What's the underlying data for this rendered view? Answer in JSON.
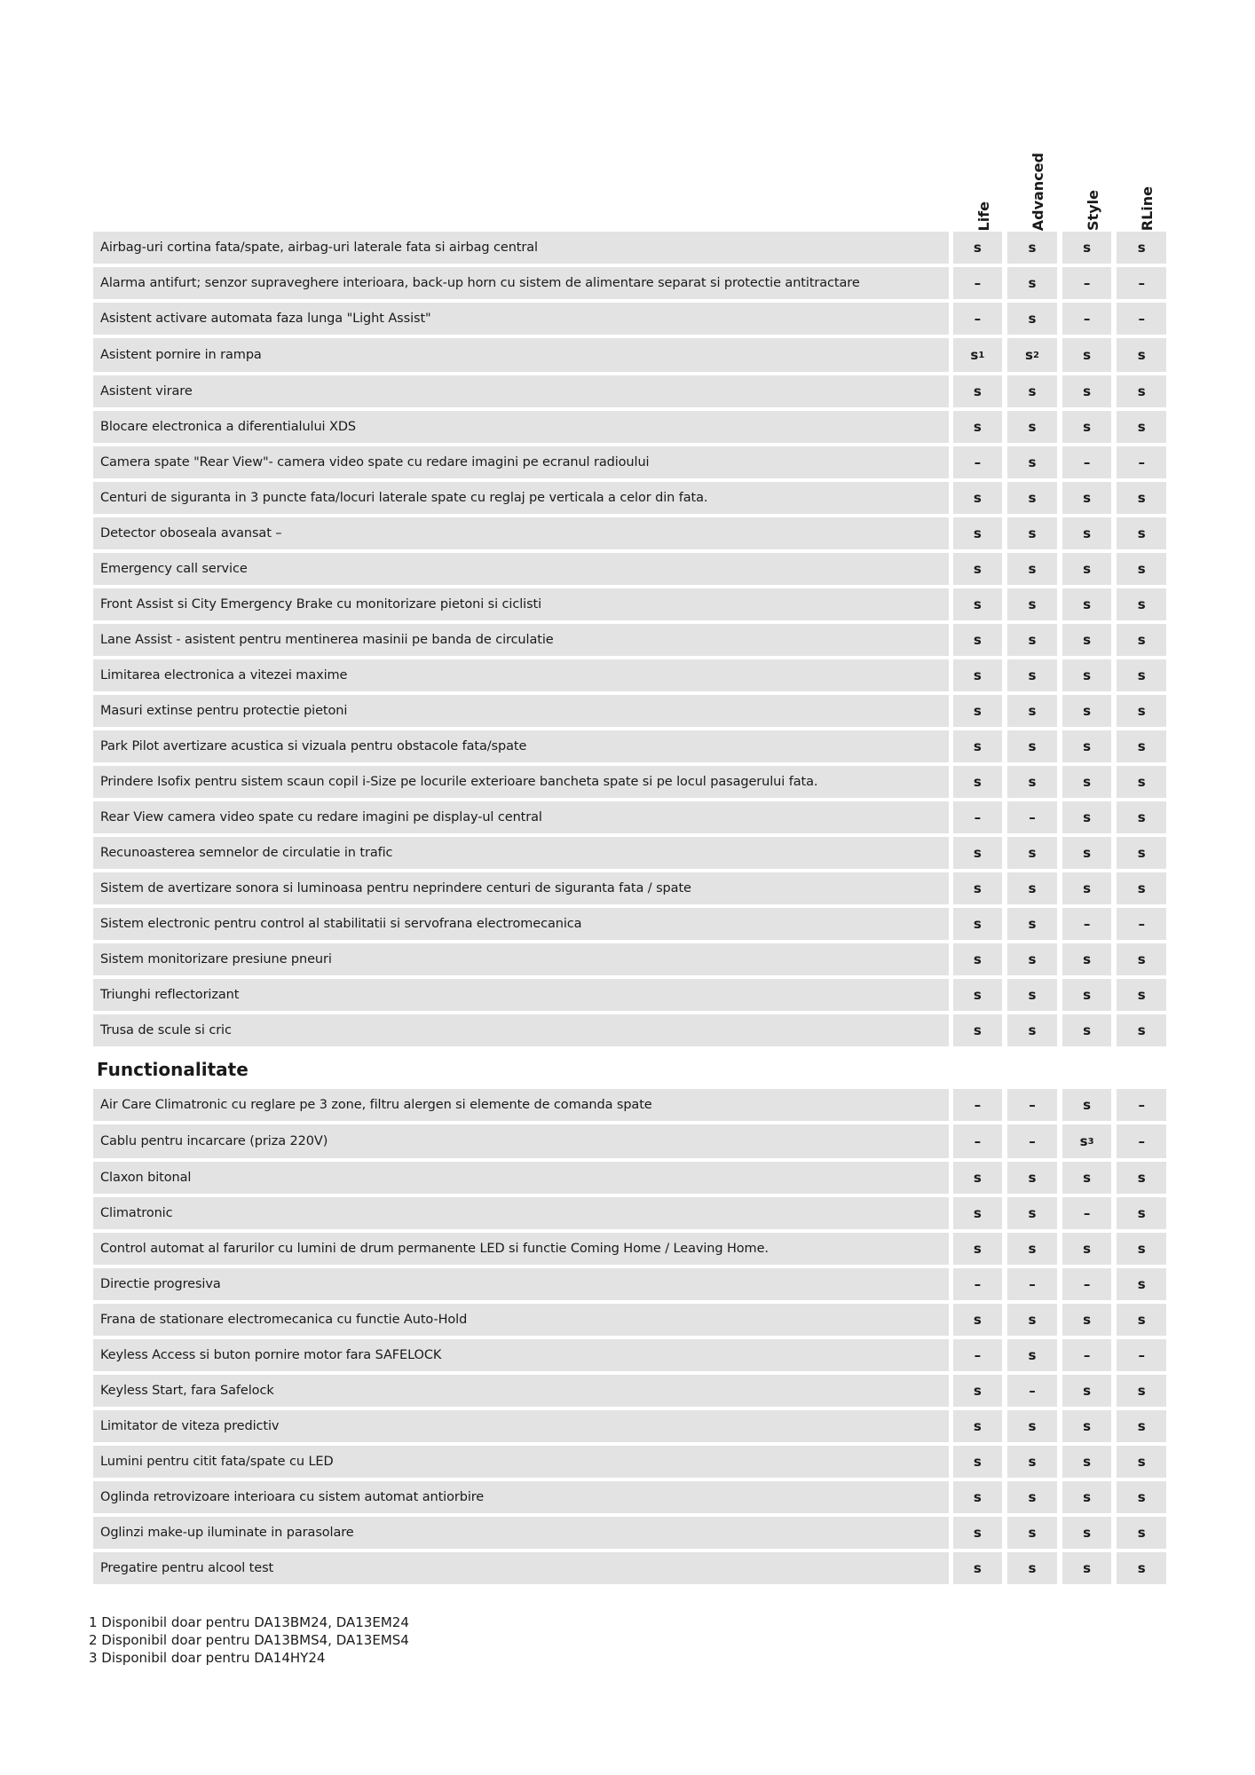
{
  "columns": [
    "Life",
    "Advanced",
    "Style",
    "RLine"
  ],
  "sections": [
    {
      "title": "",
      "rows": [
        {
          "label": "Airbag-uri cortina fata/spate, airbag-uri laterale fata si airbag central",
          "values": [
            "s",
            "s",
            "s",
            "s"
          ]
        },
        {
          "label": "Alarma antifurt; senzor supraveghere interioara, back-up horn cu sistem de alimentare separat si protectie antitractare",
          "values": [
            "–",
            "s",
            "–",
            "–"
          ]
        },
        {
          "label": "Asistent activare automata faza lunga \"Light Assist\"",
          "values": [
            "–",
            "s",
            "–",
            "–"
          ]
        },
        {
          "label": "Asistent pornire in rampa",
          "values": [
            "s|1",
            "s|2",
            "s",
            "s"
          ]
        },
        {
          "label": "Asistent virare",
          "values": [
            "s",
            "s",
            "s",
            "s"
          ]
        },
        {
          "label": "Blocare electronica a diferentialului XDS",
          "values": [
            "s",
            "s",
            "s",
            "s"
          ]
        },
        {
          "label": "Camera spate \"Rear View\"- camera video spate cu redare imagini pe ecranul radioului",
          "values": [
            "–",
            "s",
            "–",
            "–"
          ]
        },
        {
          "label": "Centuri de siguranta in 3 puncte fata/locuri laterale spate cu reglaj pe verticala a celor din fata.",
          "values": [
            "s",
            "s",
            "s",
            "s"
          ]
        },
        {
          "label": "Detector oboseala avansat –",
          "values": [
            "s",
            "s",
            "s",
            "s"
          ]
        },
        {
          "label": "Emergency call service",
          "values": [
            "s",
            "s",
            "s",
            "s"
          ]
        },
        {
          "label": "Front Assist si City Emergency Brake cu monitorizare pietoni si ciclisti",
          "values": [
            "s",
            "s",
            "s",
            "s"
          ]
        },
        {
          "label": "Lane Assist - asistent pentru mentinerea masinii pe banda de circulatie",
          "values": [
            "s",
            "s",
            "s",
            "s"
          ]
        },
        {
          "label": "Limitarea electronica a vitezei maxime",
          "values": [
            "s",
            "s",
            "s",
            "s"
          ]
        },
        {
          "label": "Masuri extinse pentru protectie pietoni",
          "values": [
            "s",
            "s",
            "s",
            "s"
          ]
        },
        {
          "label": "Park Pilot avertizare acustica si vizuala pentru obstacole fata/spate",
          "values": [
            "s",
            "s",
            "s",
            "s"
          ]
        },
        {
          "label": "Prindere Isofix pentru sistem scaun copil i-Size pe locurile exterioare bancheta spate si pe locul pasagerului fata.",
          "values": [
            "s",
            "s",
            "s",
            "s"
          ]
        },
        {
          "label": "Rear View camera video spate cu redare imagini pe display-ul central",
          "values": [
            "–",
            "–",
            "s",
            "s"
          ]
        },
        {
          "label": "Recunoasterea semnelor de circulatie in trafic",
          "values": [
            "s",
            "s",
            "s",
            "s"
          ]
        },
        {
          "label": "Sistem de avertizare sonora si luminoasa pentru neprindere centuri de siguranta fata / spate",
          "values": [
            "s",
            "s",
            "s",
            "s"
          ]
        },
        {
          "label": "Sistem electronic pentru control al stabilitatii si servofrana electromecanica",
          "values": [
            "s",
            "s",
            "–",
            "–"
          ]
        },
        {
          "label": "Sistem monitorizare presiune pneuri",
          "values": [
            "s",
            "s",
            "s",
            "s"
          ]
        },
        {
          "label": "Triunghi reflectorizant",
          "values": [
            "s",
            "s",
            "s",
            "s"
          ]
        },
        {
          "label": "Trusa de scule si cric",
          "values": [
            "s",
            "s",
            "s",
            "s"
          ]
        }
      ]
    },
    {
      "title": "Functionalitate",
      "rows": [
        {
          "label": "Air Care Climatronic cu reglare pe 3 zone, filtru alergen si elemente de comanda spate",
          "values": [
            "–",
            "–",
            "s",
            "–"
          ]
        },
        {
          "label": "Cablu pentru incarcare (priza 220V)",
          "values": [
            "–",
            "–",
            "s|3",
            "–"
          ]
        },
        {
          "label": "Claxon bitonal",
          "values": [
            "s",
            "s",
            "s",
            "s"
          ]
        },
        {
          "label": "Climatronic",
          "values": [
            "s",
            "s",
            "–",
            "s"
          ]
        },
        {
          "label": "Control automat al farurilor cu lumini de drum permanente LED si functie Coming Home / Leaving Home.",
          "values": [
            "s",
            "s",
            "s",
            "s"
          ]
        },
        {
          "label": "Directie progresiva",
          "values": [
            "–",
            "–",
            "–",
            "s"
          ]
        },
        {
          "label": "Frana de stationare electromecanica cu functie Auto-Hold",
          "values": [
            "s",
            "s",
            "s",
            "s"
          ]
        },
        {
          "label": "Keyless Access si buton pornire motor fara SAFELOCK",
          "values": [
            "–",
            "s",
            "–",
            "–"
          ]
        },
        {
          "label": "Keyless Start, fara Safelock",
          "values": [
            "s",
            "–",
            "s",
            "s"
          ]
        },
        {
          "label": "Limitator de viteza predictiv",
          "values": [
            "s",
            "s",
            "s",
            "s"
          ]
        },
        {
          "label": "Lumini pentru citit fata/spate cu LED",
          "values": [
            "s",
            "s",
            "s",
            "s"
          ]
        },
        {
          "label": "Oglinda retrovizoare interioara cu sistem automat antiorbire",
          "values": [
            "s",
            "s",
            "s",
            "s"
          ]
        },
        {
          "label": "Oglinzi make-up iluminate in parasolare",
          "values": [
            "s",
            "s",
            "s",
            "s"
          ]
        },
        {
          "label": "Pregatire pentru alcool test",
          "values": [
            "s",
            "s",
            "s",
            "s"
          ]
        }
      ]
    }
  ],
  "footnotes": [
    "1 Disponibil doar pentru DA13BM24, DA13EM24",
    "2 Disponibil doar pentru DA13BMS4, DA13EMS4",
    "3 Disponibil doar pentru DA14HY24"
  ]
}
